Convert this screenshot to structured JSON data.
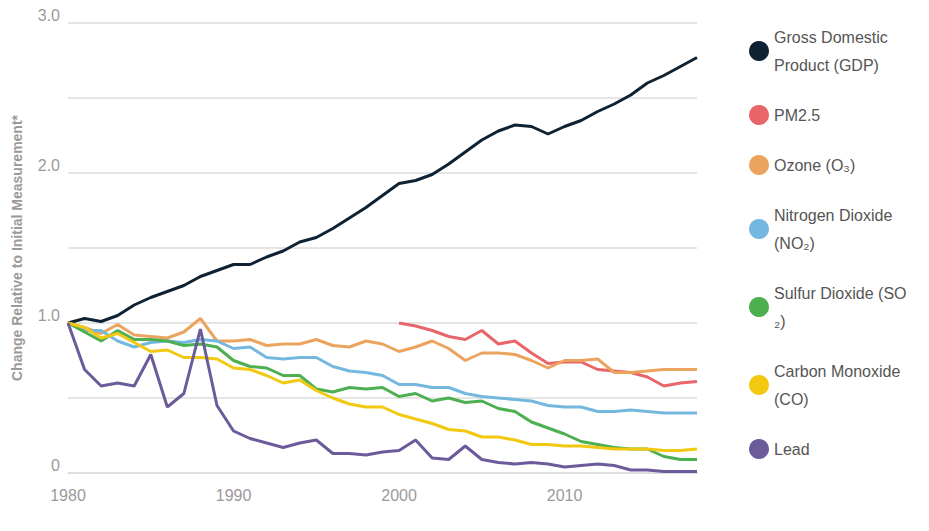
{
  "chart_data": {
    "type": "line",
    "y_label": "Change Relative to Initial Measurement*",
    "x": [
      1980,
      1981,
      1982,
      1983,
      1984,
      1985,
      1986,
      1987,
      1988,
      1989,
      1990,
      1991,
      1992,
      1993,
      1994,
      1995,
      1996,
      1997,
      1998,
      1999,
      2000,
      2001,
      2002,
      2003,
      2004,
      2005,
      2006,
      2007,
      2008,
      2009,
      2010,
      2011,
      2012,
      2013,
      2014,
      2015,
      2016,
      2017,
      2018
    ],
    "xlim": [
      1980,
      2018
    ],
    "xticks": [
      1980,
      1990,
      2000,
      2010
    ],
    "ylim": [
      0,
      3
    ],
    "yticks": [
      0,
      {
        "value": 1,
        "label": "1.0"
      },
      {
        "value": 2,
        "label": "2.0"
      },
      {
        "value": 3,
        "label": "3.0"
      }
    ],
    "grid": true,
    "legend": "right",
    "series": [
      {
        "name": "Gross Domestic Product (GDP)",
        "color": "#0f2233",
        "values": [
          1.0,
          1.03,
          1.01,
          1.05,
          1.12,
          1.17,
          1.21,
          1.25,
          1.31,
          1.35,
          1.39,
          1.39,
          1.44,
          1.48,
          1.54,
          1.57,
          1.63,
          1.7,
          1.77,
          1.85,
          1.93,
          1.95,
          1.99,
          2.06,
          2.14,
          2.22,
          2.28,
          2.32,
          2.31,
          2.26,
          2.31,
          2.35,
          2.41,
          2.46,
          2.52,
          2.6,
          2.65,
          2.71,
          2.77
        ]
      },
      {
        "name": "PM2.5",
        "color": "#e8666a",
        "values": [
          null,
          null,
          null,
          null,
          null,
          null,
          null,
          null,
          null,
          null,
          null,
          null,
          null,
          null,
          null,
          null,
          null,
          null,
          null,
          null,
          1.0,
          0.98,
          0.95,
          0.91,
          0.89,
          0.95,
          0.86,
          0.88,
          0.8,
          0.73,
          0.74,
          0.74,
          0.69,
          0.68,
          0.67,
          0.64,
          0.58,
          0.6,
          0.61
        ]
      },
      {
        "name": "Ozone (O₃)",
        "color": "#eba45e",
        "values": [
          1.0,
          0.97,
          0.93,
          0.99,
          0.92,
          0.91,
          0.9,
          0.94,
          1.03,
          0.88,
          0.88,
          0.89,
          0.85,
          0.86,
          0.86,
          0.89,
          0.85,
          0.84,
          0.88,
          0.86,
          0.81,
          0.84,
          0.88,
          0.83,
          0.75,
          0.8,
          0.8,
          0.79,
          0.75,
          0.7,
          0.75,
          0.75,
          0.76,
          0.67,
          0.67,
          0.68,
          0.69,
          0.69,
          0.69
        ]
      },
      {
        "name": "Nitrogen Dioxide (NO₂)",
        "color": "#74b8e0",
        "values": [
          1.0,
          0.95,
          0.95,
          0.88,
          0.84,
          0.87,
          0.88,
          0.87,
          0.89,
          0.88,
          0.83,
          0.84,
          0.77,
          0.76,
          0.77,
          0.77,
          0.71,
          0.68,
          0.67,
          0.65,
          0.59,
          0.59,
          0.57,
          0.57,
          0.53,
          0.51,
          0.5,
          0.49,
          0.48,
          0.45,
          0.44,
          0.44,
          0.41,
          0.41,
          0.42,
          0.41,
          0.4,
          0.4,
          0.4
        ]
      },
      {
        "name": "Sulfur Dioxide (SO₂)",
        "color": "#4caf50",
        "values": [
          1.0,
          0.94,
          0.88,
          0.95,
          0.89,
          0.89,
          0.88,
          0.85,
          0.86,
          0.84,
          0.75,
          0.71,
          0.7,
          0.65,
          0.65,
          0.56,
          0.54,
          0.57,
          0.56,
          0.57,
          0.51,
          0.53,
          0.48,
          0.5,
          0.47,
          0.48,
          0.43,
          0.41,
          0.34,
          0.3,
          0.26,
          0.21,
          0.19,
          0.17,
          0.16,
          0.16,
          0.11,
          0.09,
          0.09
        ]
      },
      {
        "name": "Carbon Monoxide (CO)",
        "color": "#f2c811",
        "values": [
          1.0,
          0.97,
          0.9,
          0.93,
          0.87,
          0.81,
          0.82,
          0.77,
          0.77,
          0.76,
          0.7,
          0.69,
          0.65,
          0.6,
          0.62,
          0.55,
          0.5,
          0.46,
          0.44,
          0.44,
          0.39,
          0.36,
          0.33,
          0.29,
          0.28,
          0.24,
          0.24,
          0.22,
          0.19,
          0.19,
          0.18,
          0.18,
          0.17,
          0.16,
          0.16,
          0.16,
          0.15,
          0.15,
          0.16
        ]
      },
      {
        "name": "Lead",
        "color": "#6c5b9b",
        "values": [
          1.0,
          0.69,
          0.58,
          0.6,
          0.58,
          0.79,
          0.44,
          0.53,
          0.96,
          0.45,
          0.28,
          0.23,
          0.2,
          0.17,
          0.2,
          0.22,
          0.13,
          0.13,
          0.12,
          0.14,
          0.15,
          0.22,
          0.1,
          0.09,
          0.18,
          0.09,
          0.07,
          0.06,
          0.07,
          0.06,
          0.04,
          0.05,
          0.06,
          0.05,
          0.02,
          0.02,
          0.01,
          0.01,
          0.01
        ]
      }
    ]
  }
}
